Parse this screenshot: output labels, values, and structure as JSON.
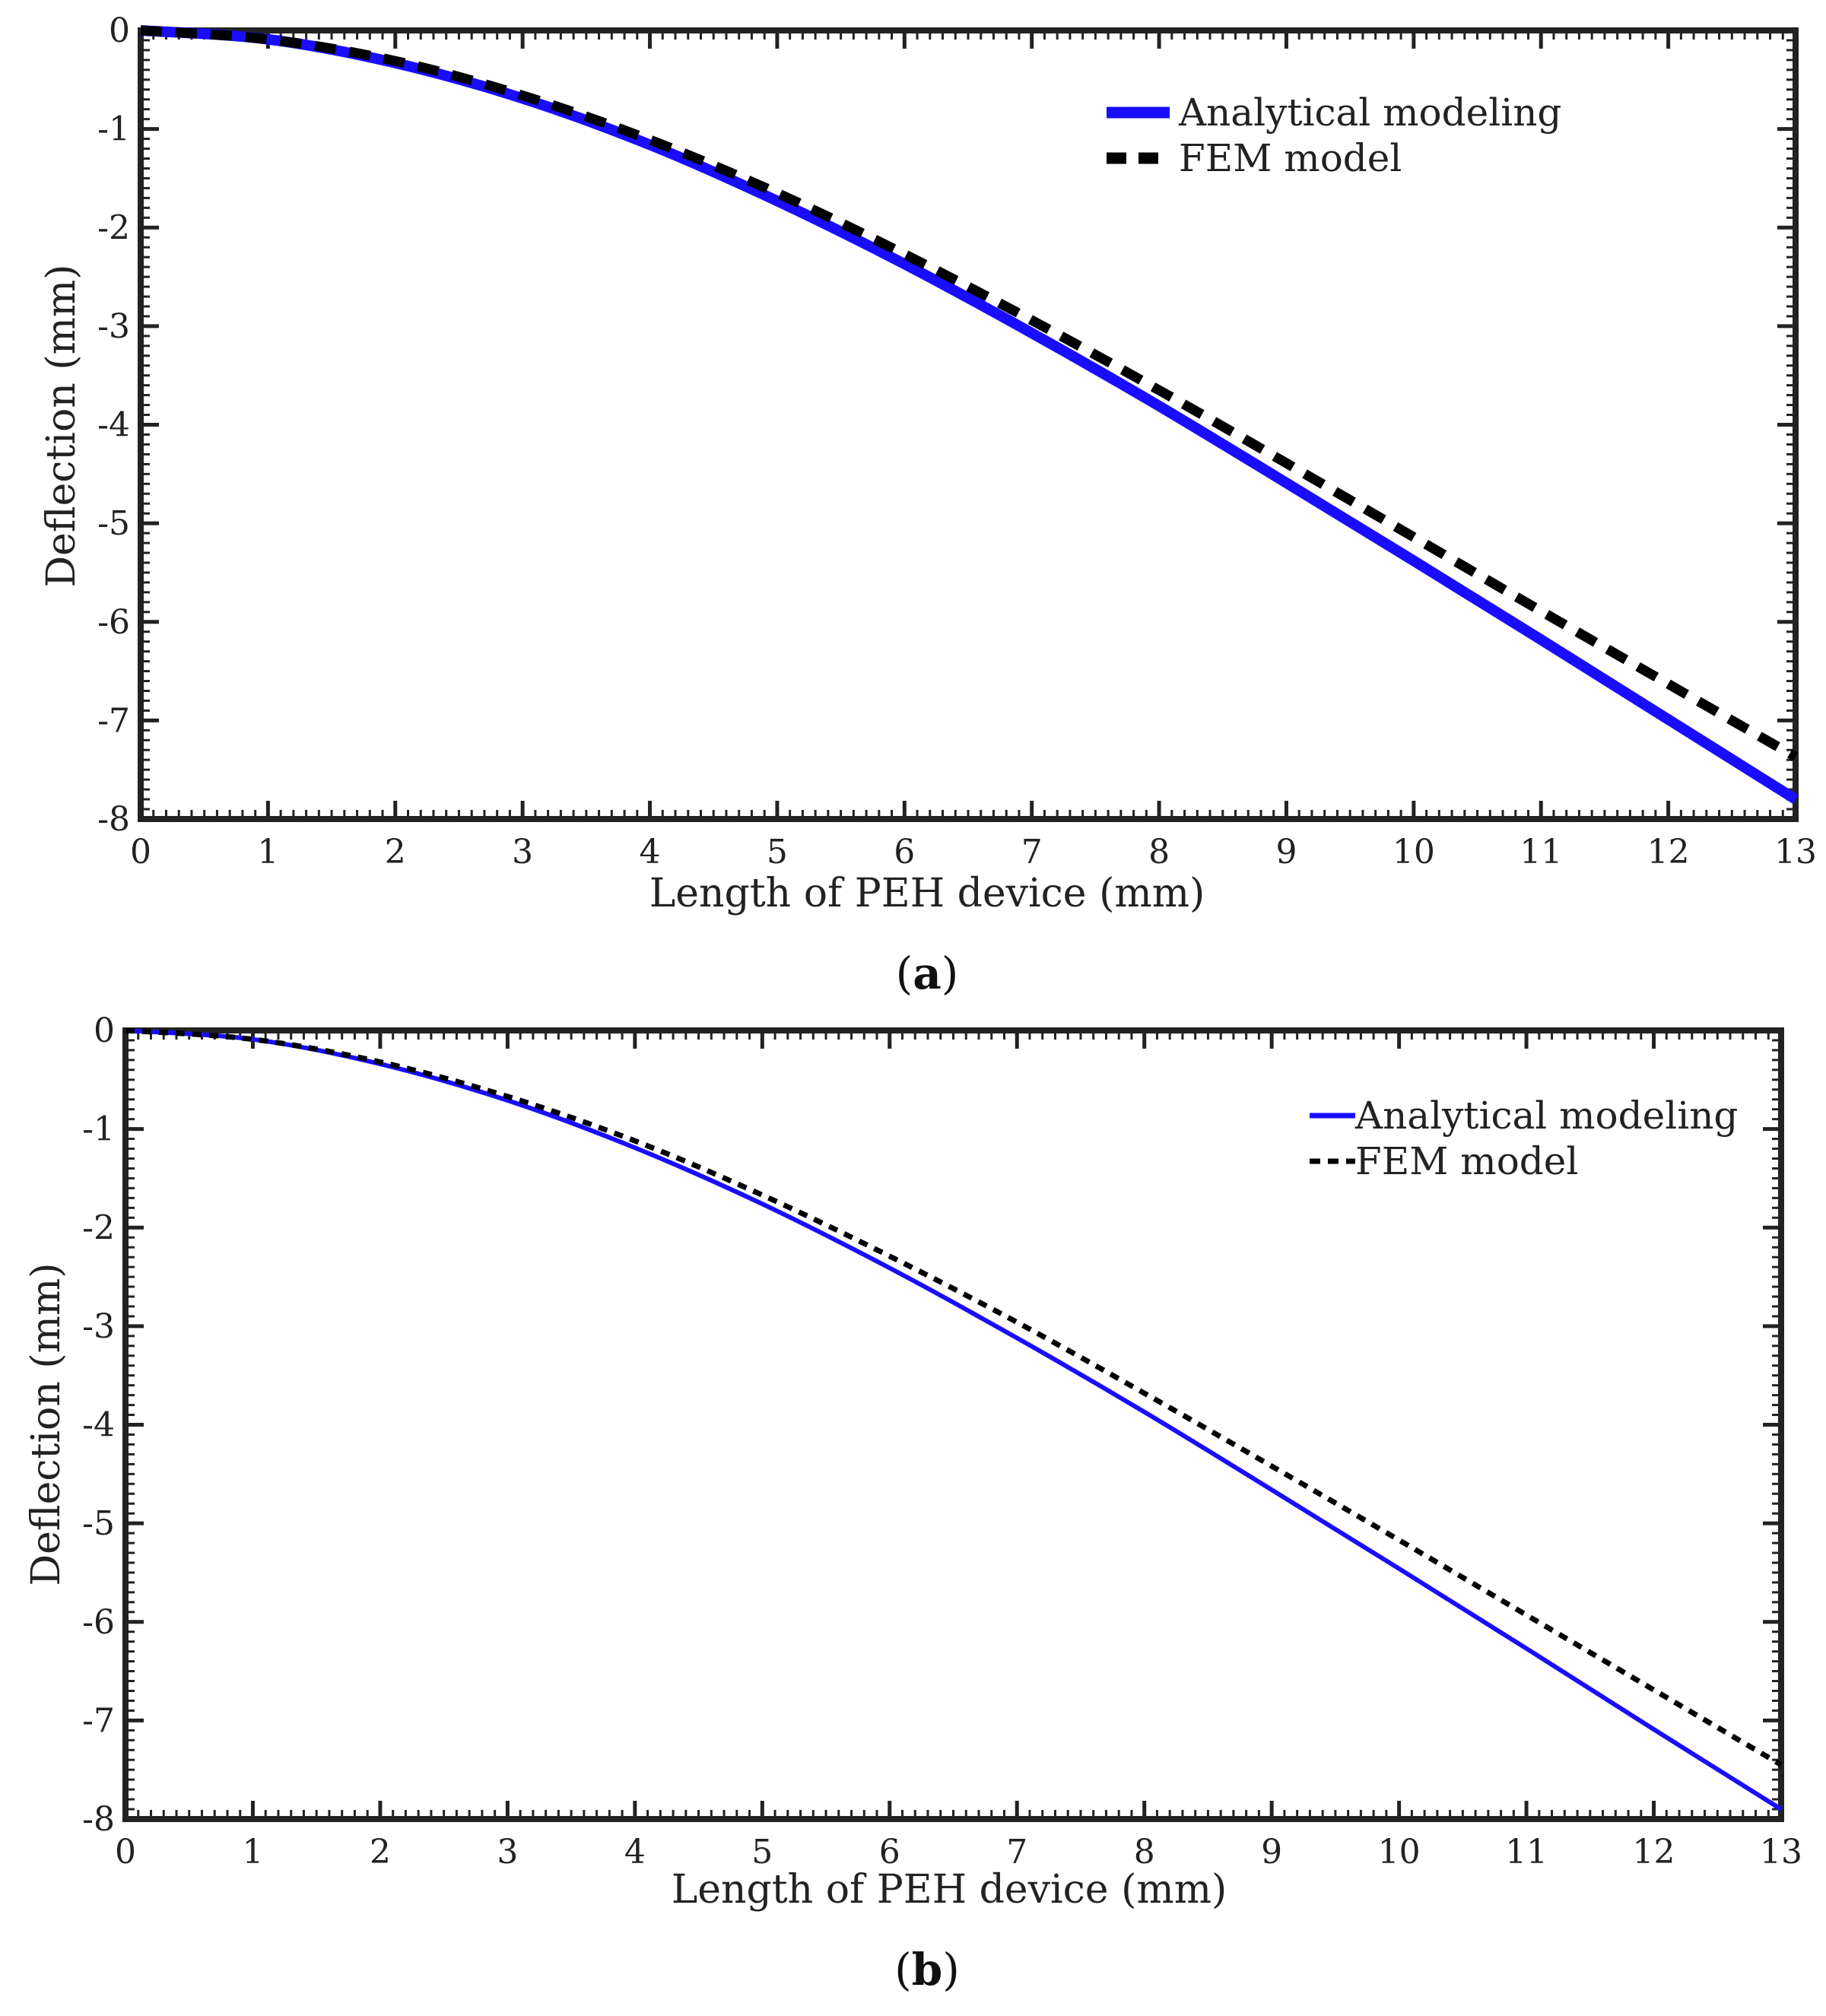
{
  "chart_data": [
    {
      "type": "line",
      "panel": "a",
      "panel_label": "a",
      "xlabel": "Length of PEH device (mm)",
      "ylabel": "Deflection (mm)",
      "xlim": [
        0,
        13
      ],
      "ylim": [
        -8,
        0
      ],
      "x_ticks": [
        "0",
        "1",
        "2",
        "3",
        "4",
        "5",
        "6",
        "7",
        "8",
        "9",
        "10",
        "11",
        "12",
        "13"
      ],
      "y_ticks": [
        "0",
        "-1",
        "-2",
        "-3",
        "-4",
        "-5",
        "-6",
        "-7",
        "-8"
      ],
      "legend_position": "top-right",
      "series": [
        {
          "name": "Analytical modeling",
          "style": "solid-thick",
          "color": "#1a0dff",
          "x": [
            0,
            1,
            2,
            3,
            4,
            5,
            6,
            7,
            8,
            9,
            10,
            11,
            12,
            13
          ],
          "values": [
            0,
            -0.09,
            -0.33,
            -0.69,
            -1.16,
            -1.73,
            -2.37,
            -3.07,
            -3.81,
            -4.59,
            -5.38,
            -6.18,
            -6.99,
            -7.8
          ]
        },
        {
          "name": "FEM model",
          "style": "dashed-thick",
          "color": "#000000",
          "x": [
            0,
            1,
            2,
            3,
            4,
            5,
            6,
            7,
            8,
            9,
            10,
            11,
            12,
            13
          ],
          "values": [
            0,
            -0.09,
            -0.31,
            -0.66,
            -1.11,
            -1.65,
            -2.27,
            -2.94,
            -3.65,
            -4.39,
            -5.14,
            -5.89,
            -6.63,
            -7.37
          ]
        }
      ]
    },
    {
      "type": "line",
      "panel": "b",
      "panel_label": "b",
      "xlabel": "Length of PEH device (mm)",
      "ylabel": "Deflection (mm)",
      "xlim": [
        0,
        13
      ],
      "ylim": [
        -8,
        0
      ],
      "x_ticks": [
        "0",
        "1",
        "2",
        "3",
        "4",
        "5",
        "6",
        "7",
        "8",
        "9",
        "10",
        "11",
        "12",
        "13"
      ],
      "y_ticks": [
        "0",
        "-1",
        "-2",
        "-3",
        "-4",
        "-5",
        "-6",
        "-7",
        "-8"
      ],
      "legend_position": "top-right",
      "series": [
        {
          "name": "Analytical modeling",
          "style": "solid-thin",
          "color": "#1a0dff",
          "x": [
            0,
            1,
            2,
            3,
            4,
            5,
            6,
            7,
            8,
            9,
            10,
            11,
            12,
            13
          ],
          "values": [
            0,
            -0.09,
            -0.34,
            -0.71,
            -1.19,
            -1.76,
            -2.41,
            -3.12,
            -3.87,
            -4.66,
            -5.46,
            -6.27,
            -7.09,
            -7.9
          ]
        },
        {
          "name": "FEM model",
          "style": "dotted-thin",
          "color": "#000000",
          "x": [
            0,
            1,
            2,
            3,
            4,
            5,
            6,
            7,
            8,
            9,
            10,
            11,
            12,
            13
          ],
          "values": [
            0,
            -0.09,
            -0.32,
            -0.67,
            -1.12,
            -1.67,
            -2.29,
            -2.96,
            -3.68,
            -4.42,
            -5.17,
            -5.93,
            -6.69,
            -7.45
          ]
        }
      ]
    }
  ]
}
